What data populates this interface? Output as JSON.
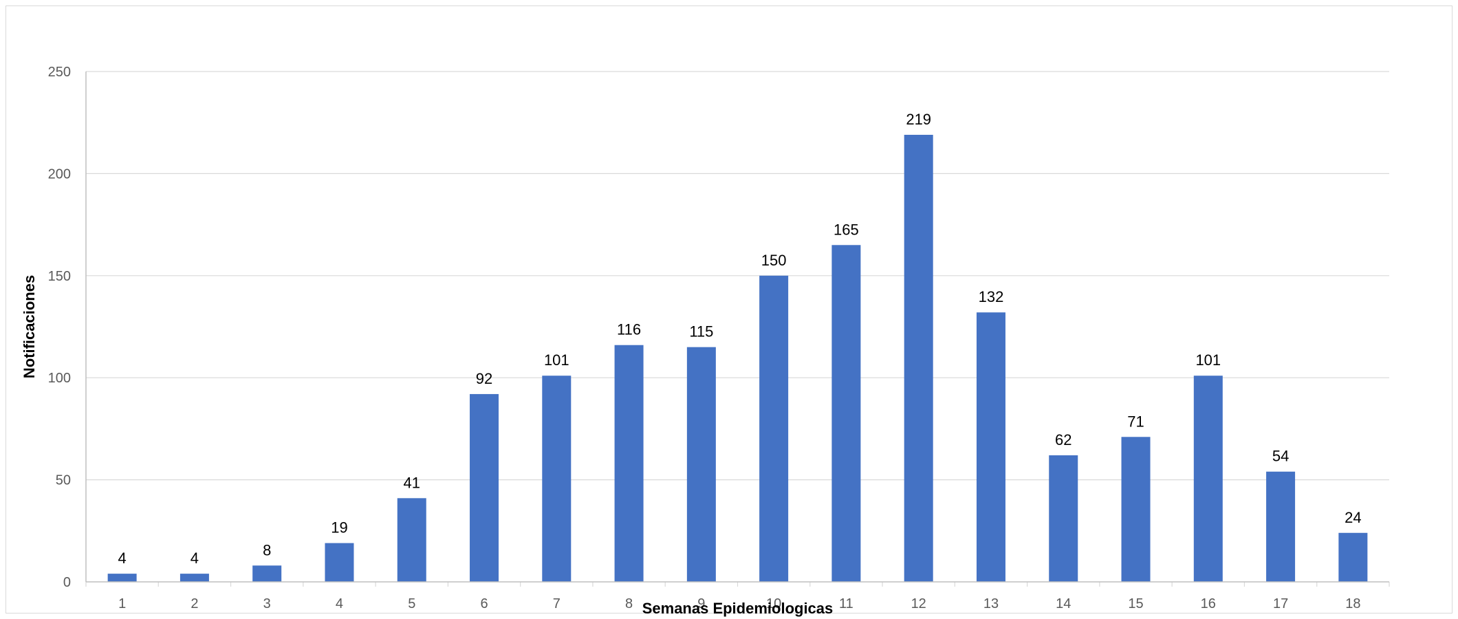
{
  "chart_data": {
    "type": "bar",
    "title": "",
    "xlabel": "Semanas Epidemiologicas",
    "ylabel": "Notificaciones",
    "categories": [
      "1",
      "2",
      "3",
      "4",
      "5",
      "6",
      "7",
      "8",
      "9",
      "10",
      "11",
      "12",
      "13",
      "14",
      "15",
      "16",
      "17",
      "18"
    ],
    "values": [
      4,
      4,
      8,
      19,
      41,
      92,
      101,
      116,
      115,
      150,
      165,
      219,
      132,
      62,
      71,
      101,
      54,
      24
    ],
    "ylim": [
      0,
      250
    ],
    "yticks": [
      0,
      50,
      100,
      150,
      200,
      250
    ],
    "grid": true,
    "legend": "none",
    "bar_color": "#4472C4",
    "grid_color": "#D9D9D9",
    "data_labels": true
  }
}
